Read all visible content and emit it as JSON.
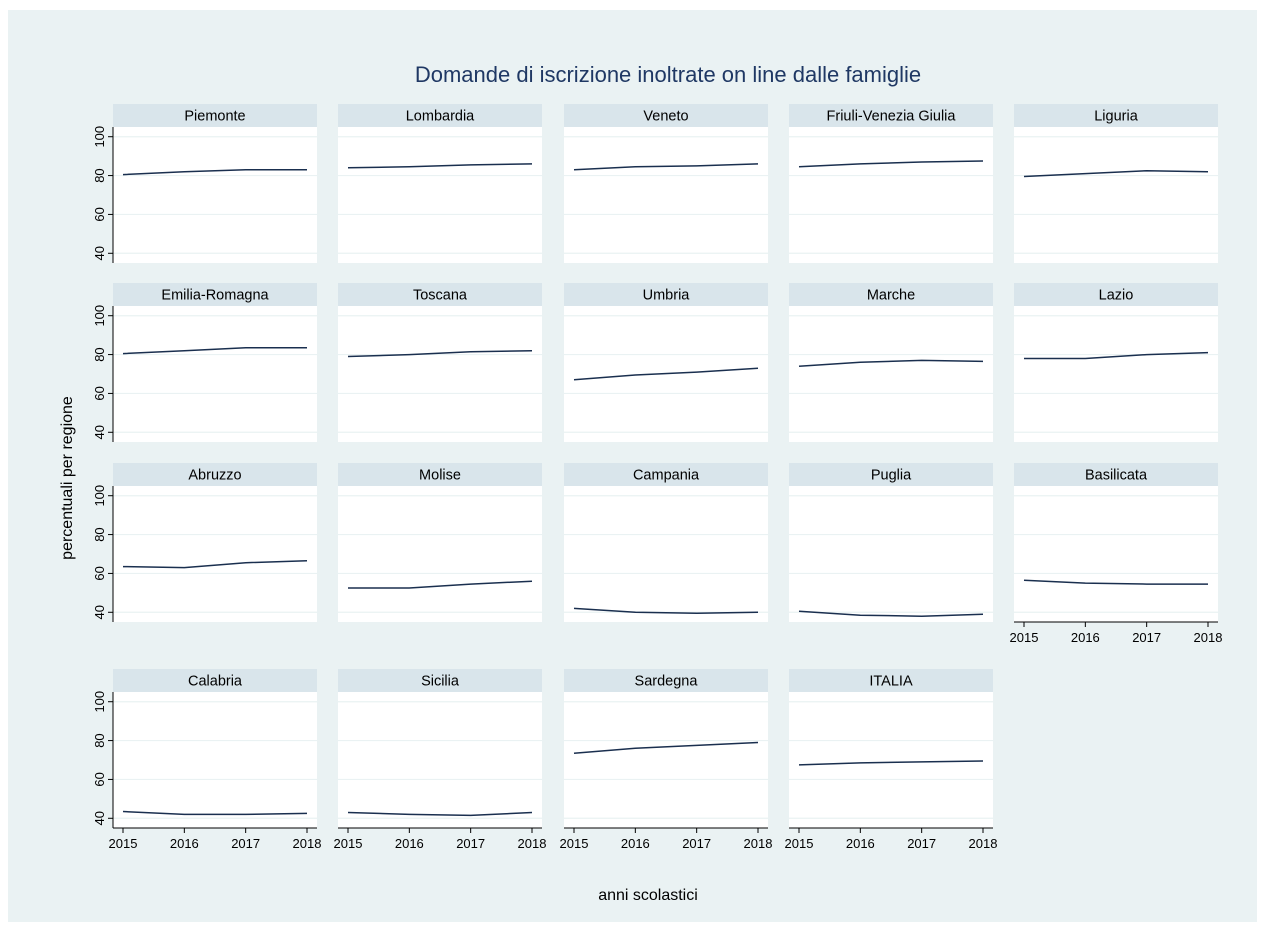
{
  "chart_data": {
    "type": "line",
    "title": "Domande di iscrizione inoltrate on line dalle famiglie",
    "xlabel": "anni scolastici",
    "ylabel": "percentuali per regione",
    "x": [
      2015,
      2016,
      2017,
      2018
    ],
    "xlim": [
      2015,
      2018
    ],
    "ylim": [
      35,
      105
    ],
    "yticks": [
      40,
      60,
      80,
      100
    ],
    "grid": true,
    "colors": {
      "background": "#eaf2f3",
      "plot_background": "#ffffff",
      "strip": "#d9e5eb",
      "line": "#1a2f4f",
      "title": "#1f3864",
      "text": "#000000",
      "grid": "#eaf2f3"
    },
    "panels": [
      {
        "name": "Piemonte",
        "values": [
          80.5,
          82,
          83,
          83
        ]
      },
      {
        "name": "Lombardia",
        "values": [
          84,
          84.5,
          85.5,
          86
        ]
      },
      {
        "name": "Veneto",
        "values": [
          83,
          84.5,
          85,
          86
        ]
      },
      {
        "name": "Friuli-Venezia Giulia",
        "values": [
          84.5,
          86,
          87,
          87.5
        ]
      },
      {
        "name": "Liguria",
        "values": [
          79.5,
          81,
          82.5,
          82
        ]
      },
      {
        "name": "Emilia-Romagna",
        "values": [
          80.5,
          82,
          83.5,
          83.5
        ]
      },
      {
        "name": "Toscana",
        "values": [
          79,
          80,
          81.5,
          82
        ]
      },
      {
        "name": "Umbria",
        "values": [
          67,
          69.5,
          71,
          73
        ]
      },
      {
        "name": "Marche",
        "values": [
          74,
          76,
          77,
          76.5
        ]
      },
      {
        "name": "Lazio",
        "values": [
          78,
          78,
          80,
          81
        ]
      },
      {
        "name": "Abruzzo",
        "values": [
          63.5,
          63,
          65.5,
          66.5
        ]
      },
      {
        "name": "Molise",
        "values": [
          52.5,
          52.5,
          54.5,
          56
        ]
      },
      {
        "name": "Campania",
        "values": [
          42,
          40,
          39.5,
          40
        ]
      },
      {
        "name": "Puglia",
        "values": [
          40.5,
          38.5,
          38,
          39
        ]
      },
      {
        "name": "Basilicata",
        "values": [
          56.5,
          55,
          54.5,
          54.5
        ]
      },
      {
        "name": "Calabria",
        "values": [
          43.5,
          42,
          42,
          42.5
        ]
      },
      {
        "name": "Sicilia",
        "values": [
          43,
          42,
          41.5,
          43
        ]
      },
      {
        "name": "Sardegna",
        "values": [
          73.5,
          76,
          77.5,
          79
        ]
      },
      {
        "name": "ITALIA",
        "values": [
          67.5,
          68.5,
          69,
          69.5
        ]
      }
    ]
  }
}
